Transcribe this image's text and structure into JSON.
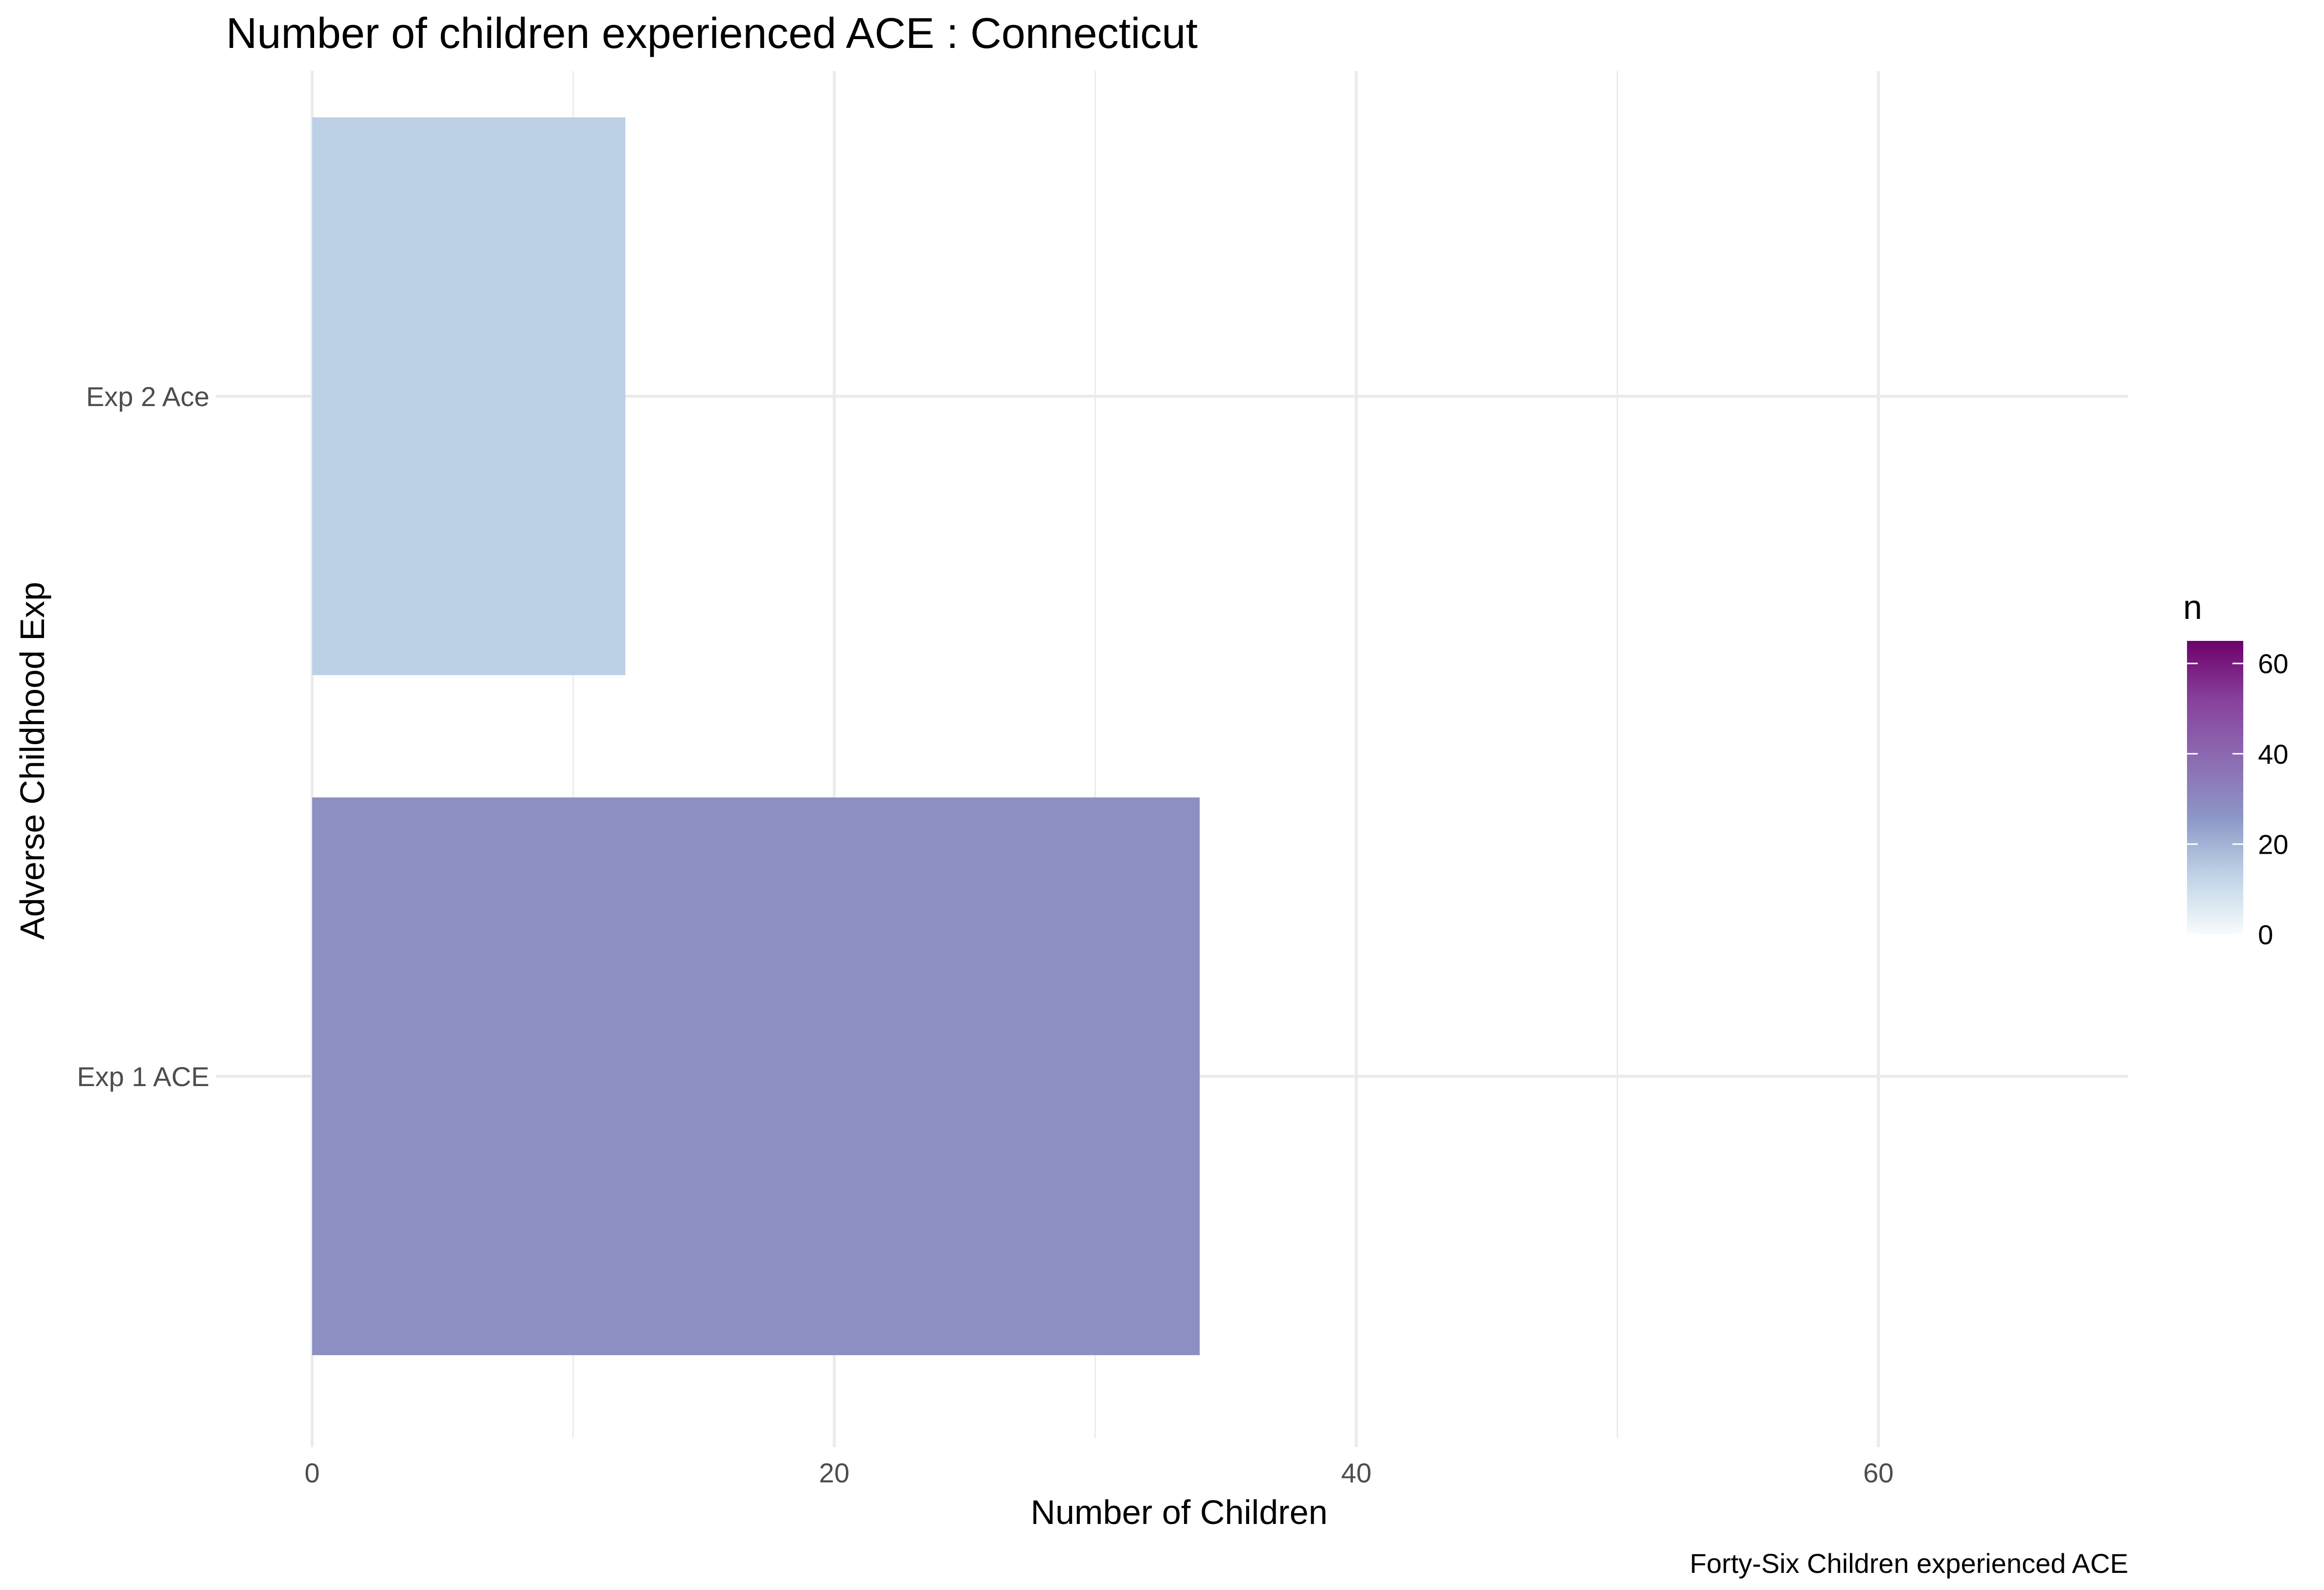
{
  "chart_data": {
    "type": "bar",
    "orientation": "horizontal",
    "title": "Number of children experienced ACE : Connecticut",
    "xlabel": "Number of Children",
    "ylabel": "Adverse Childhood Exp",
    "caption": "Forty-Six Children experienced ACE",
    "categories": [
      "Exp 1 ACE",
      "Exp 2 Ace"
    ],
    "values": [
      34,
      12
    ],
    "xlim": [
      0,
      67
    ],
    "x_ticks": [
      0,
      20,
      40,
      60
    ],
    "grid": true,
    "legend": {
      "title": "n",
      "placement": "right",
      "type": "colorbar",
      "range": [
        0,
        65
      ],
      "ticks": [
        0,
        20,
        40,
        60
      ],
      "colors": [
        "#f7fcfd",
        "#bfd3e6",
        "#8c96c6",
        "#8c6bb1",
        "#88419d",
        "#6e016b"
      ]
    },
    "bar_colors": [
      "#8c8fc2",
      "#bcd0e6"
    ]
  }
}
